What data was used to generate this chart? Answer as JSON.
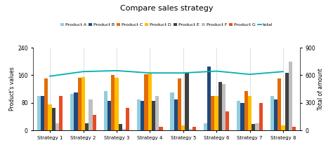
{
  "title": "Compare sales strategy",
  "categories": [
    "Strategy 1",
    "Strategy 2",
    "Strategy 3",
    "Strategy 4",
    "Strategy 5",
    "Strategy 6",
    "Strategy 7",
    "Strategy 8"
  ],
  "products": [
    "Product A",
    "Product B",
    "Product C",
    "Product D",
    "Product E",
    "Product F",
    "Product G"
  ],
  "product_colors": [
    "#92CDDC",
    "#1F497D",
    "#E36C09",
    "#FFC000",
    "#404040",
    "#BFBFBF",
    "#E84C22"
  ],
  "values": {
    "Product A": [
      100,
      105,
      115,
      90,
      110,
      20,
      85,
      100
    ],
    "Product B": [
      100,
      110,
      85,
      85,
      90,
      185,
      80,
      90
    ],
    "Product C": [
      150,
      152,
      160,
      162,
      150,
      100,
      115,
      150
    ],
    "Product D": [
      75,
      155,
      152,
      165,
      15,
      100,
      100,
      15
    ],
    "Product E": [
      65,
      20,
      18,
      85,
      168,
      140,
      18,
      168
    ],
    "Product F": [
      20,
      90,
      5,
      100,
      5,
      135,
      20,
      200
    ],
    "Product G": [
      100,
      45,
      65,
      10,
      10,
      55,
      80,
      10
    ]
  },
  "total_line": [
    590,
    640,
    650,
    625,
    625,
    645,
    610,
    640
  ],
  "total_color": "#00B0B0",
  "ylim_left": [
    0,
    240
  ],
  "ylim_right": [
    0,
    900
  ],
  "ylabel_left": "Product's values",
  "ylabel_right": "Total of amount",
  "yticks_left": [
    0,
    80,
    160,
    240
  ],
  "yticks_right": [
    0,
    300,
    600,
    900
  ],
  "background_color": "#FFFFFF",
  "grid_color": "#D3D3D3",
  "bar_width": 0.11,
  "figsize": [
    4.74,
    2.27
  ],
  "dpi": 100
}
